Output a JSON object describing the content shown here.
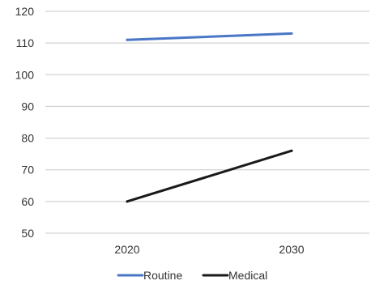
{
  "chart_data": {
    "type": "line",
    "title": "",
    "xlabel": "",
    "ylabel": "",
    "categories": [
      "2020",
      "2030"
    ],
    "ylim": [
      50,
      120
    ],
    "yticks": [
      50,
      60,
      70,
      80,
      90,
      100,
      110,
      120
    ],
    "grid": true,
    "legend_position": "bottom",
    "series": [
      {
        "name": "Routine",
        "color": "#4a76c6",
        "values": [
          111,
          113
        ]
      },
      {
        "name": "Medical",
        "color": "#1a1a1a",
        "values": [
          60,
          76
        ]
      }
    ]
  }
}
